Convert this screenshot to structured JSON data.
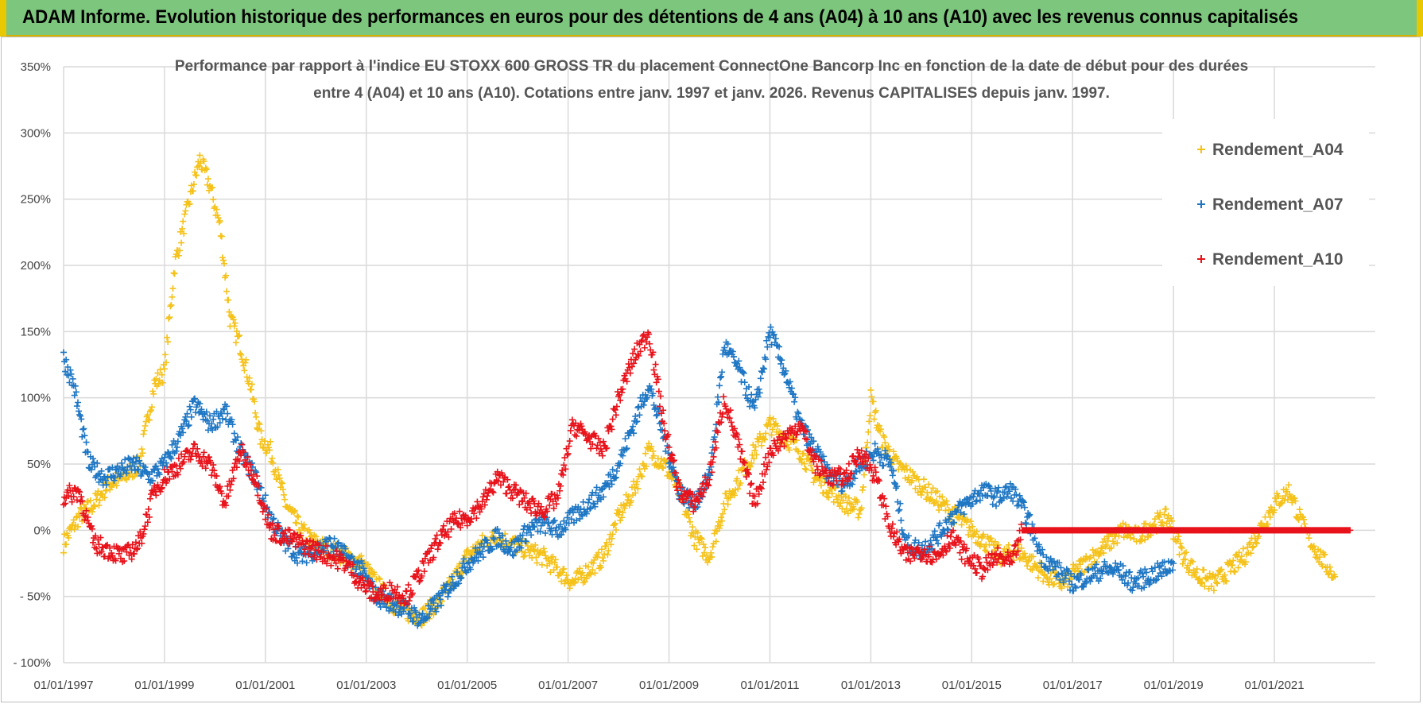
{
  "header": {
    "title": "ADAM Informe. Evolution historique des performances en euros pour des détentions de 4 ans (A04) à 10 ans (A10) avec les revenus connus capitalisés"
  },
  "colors": {
    "banner": "#7dc67d",
    "A04": "#f5c21b",
    "A07": "#1f77c4",
    "A10": "#e8131b",
    "grid": "#d9d9d9"
  },
  "chart_data": {
    "type": "scatter",
    "title_line1": "Performance par rapport à l'indice EU STOXX 600 GROSS TR  du placement ConnectOne Bancorp Inc en fonction de la date de début pour des durées",
    "title_line2": "entre 4 (A04) et 10 ans (A10).  Cotations entre janv. 1997 et janv. 2026. Revenus CAPITALISES depuis janv. 1997.",
    "xlabel": "",
    "ylabel": "",
    "ylim": [
      -100,
      350
    ],
    "xlim": [
      1997.0,
      2023.0
    ],
    "y_ticks": [
      "350%",
      "300%",
      "250%",
      "200%",
      "150%",
      "100%",
      "50%",
      "0%",
      "- 50%",
      "- 100%"
    ],
    "y_tick_values": [
      350,
      300,
      250,
      200,
      150,
      100,
      50,
      0,
      -50,
      -100
    ],
    "x_ticks": [
      "01/01/1997",
      "01/01/1999",
      "01/01/2001",
      "01/01/2003",
      "01/01/2005",
      "01/01/2007",
      "01/01/2009",
      "01/01/2011",
      "01/01/2013",
      "01/01/2015",
      "01/01/2017",
      "01/01/2019",
      "01/01/2021"
    ],
    "x_tick_values": [
      1997,
      1999,
      2001,
      2003,
      2005,
      2007,
      2009,
      2011,
      2013,
      2015,
      2017,
      2019,
      2021
    ],
    "grid": true,
    "legend_position": "top-right",
    "series": [
      {
        "name": "Rendement_A04",
        "color": "#f5c21b",
        "x": [
          1997.0,
          1997.3,
          1997.6,
          1997.9,
          1998.2,
          1998.5,
          1998.8,
          1999.0,
          1999.2,
          1999.5,
          1999.7,
          1999.9,
          2000.1,
          2000.3,
          2000.5,
          2000.7,
          2000.9,
          2001.1,
          2001.4,
          2001.7,
          2002.0,
          2002.3,
          2002.6,
          2002.9,
          2003.2,
          2003.5,
          2003.8,
          2004.1,
          2004.4,
          2004.7,
          2005.0,
          2005.3,
          2005.6,
          2005.9,
          2006.2,
          2006.5,
          2006.8,
          2007.1,
          2007.4,
          2007.7,
          2008.0,
          2008.3,
          2008.6,
          2008.9,
          2009.2,
          2009.5,
          2009.8,
          2010.1,
          2010.4,
          2010.7,
          2011.0,
          2011.3,
          2011.6,
          2011.9,
          2012.2,
          2012.5,
          2012.8,
          2013.0,
          2013.2,
          2013.5,
          2013.8,
          2014.1,
          2014.4,
          2014.7,
          2015.0,
          2015.3,
          2015.6,
          2015.9,
          2016.2,
          2016.5,
          2016.8,
          2017.1,
          2017.4,
          2017.7,
          2018.0,
          2018.3,
          2018.6,
          2018.9,
          2019.2,
          2019.5,
          2019.8,
          2020.1,
          2020.4,
          2020.7,
          2021.0,
          2021.3,
          2021.6,
          2021.9,
          2022.2
        ],
        "values": [
          -10,
          10,
          20,
          35,
          40,
          50,
          110,
          120,
          200,
          250,
          280,
          260,
          230,
          160,
          140,
          110,
          70,
          60,
          20,
          0,
          -10,
          -15,
          -20,
          -25,
          -40,
          -55,
          -62,
          -65,
          -55,
          -40,
          -20,
          -10,
          -5,
          -10,
          -15,
          -20,
          -30,
          -40,
          -30,
          -20,
          10,
          30,
          60,
          50,
          30,
          -5,
          -20,
          20,
          40,
          60,
          80,
          70,
          60,
          40,
          30,
          20,
          15,
          100,
          70,
          50,
          40,
          30,
          20,
          10,
          0,
          -10,
          -20,
          -15,
          -25,
          -35,
          -40,
          -30,
          -20,
          -10,
          0,
          -5,
          5,
          10,
          -20,
          -35,
          -40,
          -30,
          -20,
          0,
          20,
          30,
          0,
          -20,
          -35
        ]
      },
      {
        "name": "Rendement_A07",
        "color": "#1f77c4",
        "x": [
          1997.0,
          1997.2,
          1997.5,
          1997.8,
          1998.1,
          1998.4,
          1998.7,
          1999.0,
          1999.3,
          1999.6,
          1999.9,
          2000.2,
          2000.5,
          2000.8,
          2001.1,
          2001.4,
          2001.7,
          2002.0,
          2002.3,
          2002.6,
          2002.9,
          2003.2,
          2003.5,
          2003.8,
          2004.1,
          2004.4,
          2004.7,
          2005.0,
          2005.3,
          2005.6,
          2005.9,
          2006.2,
          2006.5,
          2006.8,
          2007.1,
          2007.4,
          2007.7,
          2008.0,
          2008.3,
          2008.6,
          2008.9,
          2009.2,
          2009.5,
          2009.8,
          2010.1,
          2010.4,
          2010.7,
          2011.0,
          2011.3,
          2011.6,
          2011.9,
          2012.2,
          2012.5,
          2012.8,
          2013.1,
          2013.4,
          2013.7,
          2014.0,
          2014.3,
          2014.6,
          2014.9,
          2015.2,
          2015.5,
          2015.8,
          2016.1,
          2016.4,
          2016.7,
          2017.0,
          2017.3,
          2017.6,
          2017.9,
          2018.2,
          2018.5,
          2018.8,
          2019.0
        ],
        "values": [
          130,
          110,
          50,
          40,
          45,
          50,
          40,
          50,
          70,
          95,
          80,
          90,
          60,
          40,
          10,
          -10,
          -20,
          -15,
          -10,
          -20,
          -30,
          -50,
          -55,
          -60,
          -68,
          -55,
          -40,
          -25,
          -15,
          -5,
          -15,
          0,
          5,
          0,
          10,
          20,
          30,
          50,
          80,
          110,
          70,
          30,
          20,
          40,
          140,
          120,
          90,
          150,
          120,
          80,
          60,
          40,
          35,
          50,
          60,
          50,
          -10,
          -15,
          -5,
          10,
          20,
          30,
          25,
          30,
          10,
          -20,
          -30,
          -40,
          -35,
          -30,
          -30,
          -40,
          -35,
          -30,
          -25
        ]
      },
      {
        "name": "Rendement_A10",
        "color": "#e8131b",
        "x": [
          1997.0,
          1997.3,
          1997.6,
          1997.9,
          1998.2,
          1998.5,
          1998.8,
          1999.0,
          1999.3,
          1999.6,
          1999.9,
          2000.2,
          2000.5,
          2000.8,
          2001.1,
          2001.4,
          2001.7,
          2002.0,
          2002.3,
          2002.6,
          2002.9,
          2003.2,
          2003.5,
          2003.8,
          2004.1,
          2004.4,
          2004.7,
          2005.0,
          2005.3,
          2005.6,
          2005.9,
          2006.2,
          2006.5,
          2006.8,
          2007.1,
          2007.4,
          2007.7,
          2008.0,
          2008.3,
          2008.6,
          2008.9,
          2009.2,
          2009.5,
          2009.8,
          2010.1,
          2010.4,
          2010.7,
          2011.0,
          2011.3,
          2011.6,
          2011.9,
          2012.2,
          2012.5,
          2012.8,
          2013.1,
          2013.4,
          2013.7,
          2014.0,
          2014.3,
          2014.6,
          2014.9,
          2015.2,
          2015.5,
          2015.8,
          2016.0,
          2016.5,
          2017.0,
          2017.5,
          2018.0,
          2018.5,
          2019.0,
          2019.5,
          2020.0,
          2020.5,
          2021.0,
          2021.5,
          2022.0,
          2022.5
        ],
        "values": [
          25,
          30,
          -10,
          -15,
          -20,
          -10,
          30,
          40,
          50,
          60,
          50,
          20,
          60,
          40,
          0,
          -5,
          -10,
          -15,
          -20,
          -25,
          -40,
          -50,
          -45,
          -50,
          -30,
          -10,
          5,
          10,
          20,
          40,
          30,
          20,
          15,
          25,
          80,
          70,
          60,
          100,
          130,
          150,
          80,
          30,
          20,
          40,
          100,
          60,
          20,
          60,
          70,
          80,
          50,
          40,
          40,
          60,
          40,
          0,
          -20,
          -15,
          -20,
          -5,
          -20,
          -30,
          -20,
          -25,
          0,
          0,
          0,
          0,
          0,
          0,
          0,
          0,
          0,
          0,
          0,
          0,
          0,
          0
        ]
      }
    ]
  }
}
